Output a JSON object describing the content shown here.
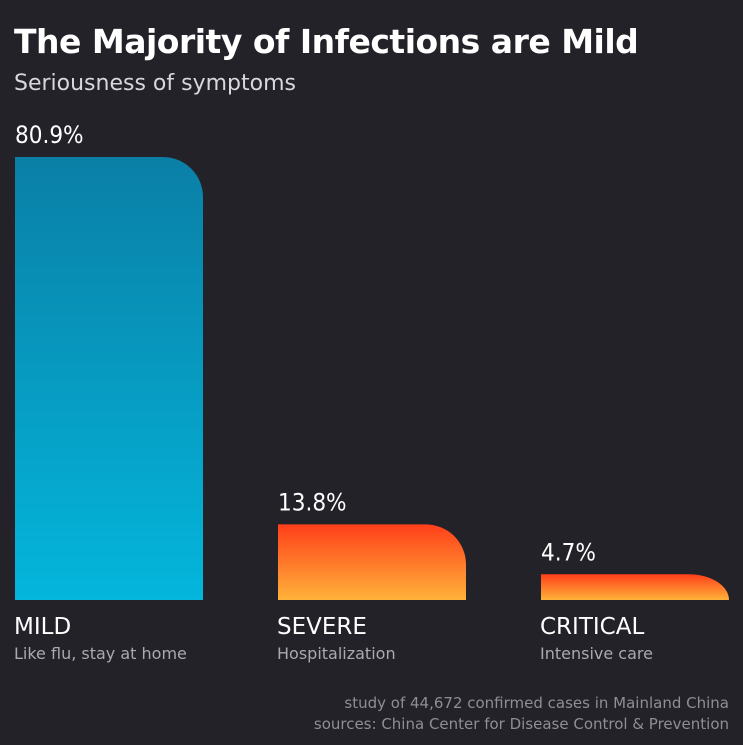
{
  "header": {
    "title": "The Majority of Infections are Mild",
    "subtitle": "Seriousness of symptoms"
  },
  "chart_data": {
    "type": "bar",
    "title": "The Majority of Infections are Mild",
    "subtitle": "Seriousness of symptoms",
    "categories": [
      "MILD",
      "SEVERE",
      "CRITICAL"
    ],
    "descriptions": [
      "Like flu, stay at home",
      "Hospitalization",
      "Intensive care"
    ],
    "values": [
      80.9,
      13.8,
      4.7
    ],
    "value_labels": [
      "80.9%",
      "13.8%",
      "4.7%"
    ],
    "unit": "%",
    "xlabel": "",
    "ylabel": "",
    "ylim": [
      0,
      80.9
    ],
    "grid": false,
    "legend": "none",
    "colors": {
      "mild_top": "#0a7fa6",
      "mild_bottom": "#04b6dc",
      "severe_top": "#ff3f1a",
      "severe_bottom": "#ffb23a",
      "background": "#242229"
    }
  },
  "footer": {
    "line1": "study of 44,672 confirmed cases in Mainland China",
    "line2": "sources: China Center for Disease Control & Prevention"
  }
}
